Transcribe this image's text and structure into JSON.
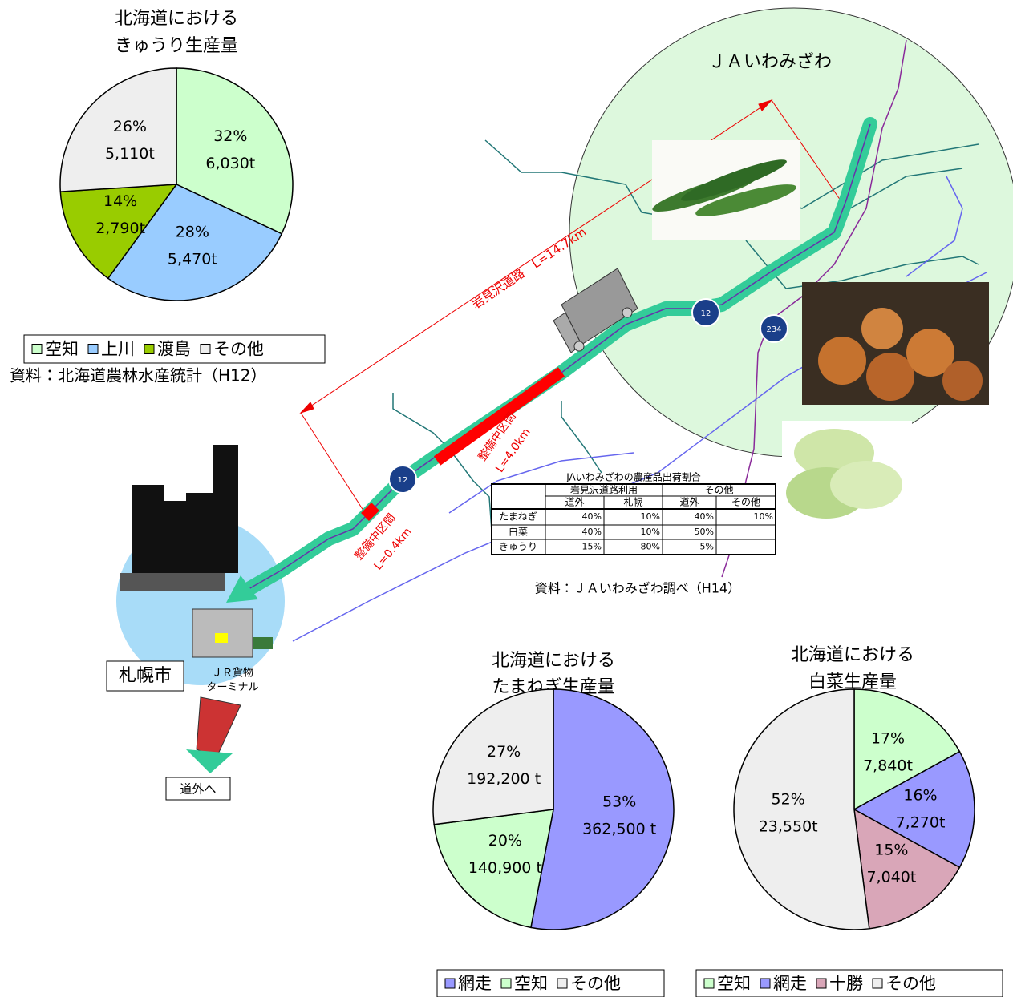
{
  "chart_data": [
    {
      "type": "pie",
      "title": [
        "北海道における",
        "きゅうり生産量"
      ],
      "categories": [
        "空知",
        "上川",
        "渡島",
        "その他"
      ],
      "values": [
        32,
        28,
        14,
        26
      ],
      "value_labels": [
        "32%",
        "28%",
        "14%",
        "26%"
      ],
      "amounts": [
        6030,
        5470,
        2790,
        5110
      ],
      "amount_labels": [
        "6,030t",
        "5,470t",
        "2,790t",
        "5,110t"
      ],
      "colors": [
        "#ccffcc",
        "#99ccff",
        "#99cc00",
        "#eeeeee"
      ],
      "source": "資料：北海道農林水産統計（H12）"
    },
    {
      "type": "pie",
      "title": [
        "北海道における",
        "たまねぎ生産量"
      ],
      "categories": [
        "網走",
        "空知",
        "その他"
      ],
      "values": [
        53,
        20,
        27
      ],
      "value_labels": [
        "53%",
        "20%",
        "27%"
      ],
      "amounts": [
        362500,
        140900,
        192200
      ],
      "amount_labels": [
        "362,500 t",
        "140,900 t",
        "192,200 t"
      ],
      "colors": [
        "#9999ff",
        "#ccffcc",
        "#eeeeee"
      ]
    },
    {
      "type": "pie",
      "title": [
        "北海道における",
        "白菜生産量"
      ],
      "categories": [
        "空知",
        "網走",
        "十勝",
        "その他"
      ],
      "values": [
        17,
        16,
        15,
        52
      ],
      "value_labels": [
        "17%",
        "16%",
        "15%",
        "52%"
      ],
      "amounts": [
        7840,
        7270,
        7040,
        23550
      ],
      "amount_labels": [
        "7,840t",
        "7,270t",
        "7,040t",
        "23,550t"
      ],
      "colors": [
        "#ccffcc",
        "#9999ff",
        "#d9a6b8",
        "#eeeeee"
      ]
    }
  ],
  "map": {
    "region": "ＪＡいわみざわ",
    "road": "岩見沢道路　L=14.7km",
    "section_long": [
      "整備中区間",
      "L=4.0km"
    ],
    "section_short": [
      "整備中区間",
      "L=0.4km"
    ],
    "route_numbers": [
      "12",
      "234",
      "12"
    ],
    "city": "札幌市",
    "terminal": [
      "ＪＲ貨物",
      "ターミナル"
    ],
    "destination": "道外へ",
    "source": "資料：ＪＡいわみざわ調べ（H14）"
  },
  "table": {
    "title": "JAいわみざわの農産品出荷割合",
    "groups": [
      "岩見沢道路利用",
      "その他"
    ],
    "columns": [
      "道外",
      "札幌",
      "道外",
      "その他"
    ],
    "rows": [
      {
        "name": "たまねぎ",
        "cells": [
          "40%",
          "10%",
          "40%",
          "10%"
        ]
      },
      {
        "name": "白菜",
        "cells": [
          "40%",
          "10%",
          "50%",
          null
        ]
      },
      {
        "name": "きゅうり",
        "cells": [
          "15%",
          "80%",
          "5%",
          null
        ]
      }
    ]
  }
}
